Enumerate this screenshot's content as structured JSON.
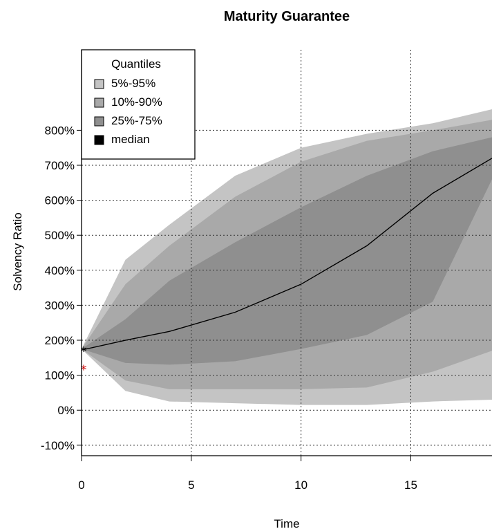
{
  "chart_data": {
    "type": "area",
    "title": "Maturity Guarantee",
    "xlabel": "Time",
    "ylabel": "Solvency Ratio",
    "x_ticks": [
      0,
      5,
      10,
      15
    ],
    "y_ticks": [
      -1.0,
      0.0,
      1.0,
      2.0,
      3.0,
      4.0,
      5.0,
      6.0,
      7.0,
      8.0
    ],
    "y_tick_labels": [
      "-100%",
      "0%",
      "100%",
      "200%",
      "300%",
      "400%",
      "500%",
      "600%",
      "700%",
      "800%"
    ],
    "xlim": [
      0,
      18.7
    ],
    "ylim": [
      -1.3,
      10.3
    ],
    "grid": true,
    "legend": {
      "title": "Quantiles",
      "position": "top-left",
      "items": [
        "5%-95%",
        "10%-90%",
        "25%-75%",
        "median"
      ]
    },
    "x": [
      0,
      2,
      4,
      7,
      10,
      13,
      16,
      18.7
    ],
    "series": [
      {
        "name": "5%-95%",
        "lower": [
          1.75,
          0.55,
          0.25,
          0.2,
          0.15,
          0.15,
          0.25,
          0.3
        ],
        "upper": [
          1.75,
          4.3,
          5.3,
          6.7,
          7.5,
          7.9,
          8.2,
          8.6
        ],
        "color": "#c4c4c4"
      },
      {
        "name": "10%-90%",
        "lower": [
          1.75,
          0.85,
          0.6,
          0.6,
          0.6,
          0.65,
          1.1,
          1.7
        ],
        "upper": [
          1.75,
          3.6,
          4.7,
          6.1,
          7.1,
          7.7,
          8.0,
          8.3
        ],
        "color": "#a9a9a9"
      },
      {
        "name": "25%-75%",
        "lower": [
          1.75,
          1.35,
          1.3,
          1.4,
          1.75,
          2.15,
          3.1,
          6.6
        ],
        "upper": [
          1.75,
          2.6,
          3.7,
          4.8,
          5.8,
          6.7,
          7.4,
          7.8
        ],
        "color": "#8f8f8f"
      },
      {
        "name": "median",
        "values": [
          1.72,
          2.0,
          2.25,
          2.8,
          3.6,
          4.7,
          6.2,
          7.2
        ],
        "color": "#000000"
      }
    ],
    "markers": [
      {
        "x": 0,
        "y": 1.72,
        "symbol": "*",
        "color": "#000000"
      },
      {
        "x": 0,
        "y": 1.2,
        "symbol": "*",
        "color": "#cc0000"
      }
    ]
  }
}
